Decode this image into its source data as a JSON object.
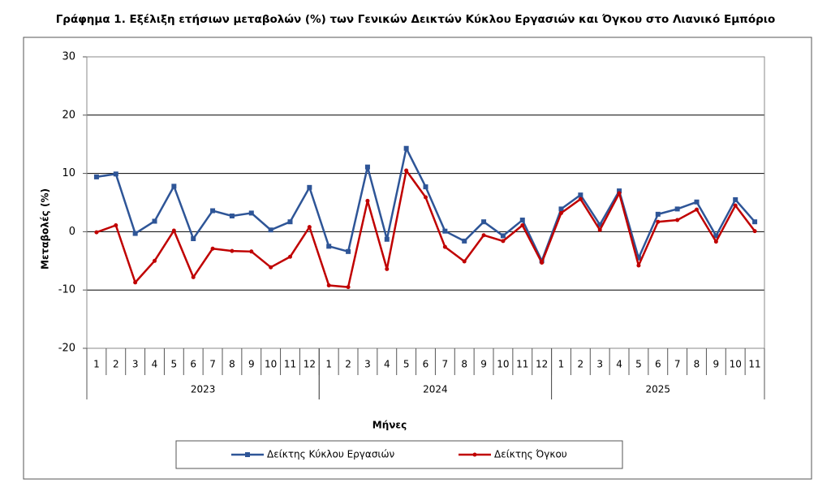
{
  "chart_data": {
    "type": "line",
    "title": "Γράφημα 1. Εξέλιξη ετήσιων μεταβολών (%) των Γενικών Δεικτών Κύκλου Εργασιών και Όγκου στο Λιανικό Εμπόριο",
    "ylabel": "Μεταβολές  (%)",
    "xlabel": "Μήνες",
    "groups": [
      {
        "name": "2023",
        "categories": [
          "1",
          "2",
          "3",
          "4",
          "5",
          "6",
          "7",
          "8",
          "9",
          "10",
          "11",
          "12"
        ]
      },
      {
        "name": "2024",
        "categories": [
          "1",
          "2",
          "3",
          "4",
          "5",
          "6",
          "7",
          "8",
          "9",
          "10",
          "11",
          "12"
        ]
      },
      {
        "name": "2025",
        "categories": [
          "1",
          "2",
          "3",
          "4",
          "5",
          "6",
          "7",
          "8",
          "9",
          "10",
          "11"
        ]
      }
    ],
    "series": [
      {
        "name": "Δείκτης Κύκλου Εργασιών",
        "color": "#2e5597",
        "marker": "square",
        "values": [
          9.4,
          9.9,
          -0.3,
          1.8,
          7.8,
          -1.2,
          3.6,
          2.7,
          3.2,
          0.3,
          1.7,
          7.6,
          -2.5,
          -3.4,
          11.1,
          -1.3,
          14.3,
          7.7,
          0.1,
          -1.6,
          1.7,
          -0.7,
          2.0,
          -5.0,
          3.9,
          6.3,
          1.2,
          7.0,
          -4.5,
          3.0,
          3.9,
          5.1,
          -0.7,
          5.5,
          1.7
        ]
      },
      {
        "name": "Δείκτης Όγκου",
        "color": "#c00000",
        "marker": "circle",
        "values": [
          -0.1,
          1.1,
          -8.7,
          -5.0,
          0.2,
          -7.8,
          -2.9,
          -3.3,
          -3.4,
          -6.1,
          -4.3,
          0.8,
          -9.2,
          -9.5,
          5.3,
          -6.4,
          10.5,
          5.9,
          -2.6,
          -5.1,
          -0.6,
          -1.6,
          1.1,
          -5.3,
          3.2,
          5.6,
          0.3,
          6.6,
          -5.8,
          1.7,
          2.0,
          3.8,
          -1.7,
          4.5,
          0.1
        ]
      }
    ],
    "ylim": [
      -20,
      30
    ],
    "yticks": [
      -20,
      -10,
      0,
      10,
      20,
      30
    ],
    "grid": true,
    "legend": "bottom"
  }
}
